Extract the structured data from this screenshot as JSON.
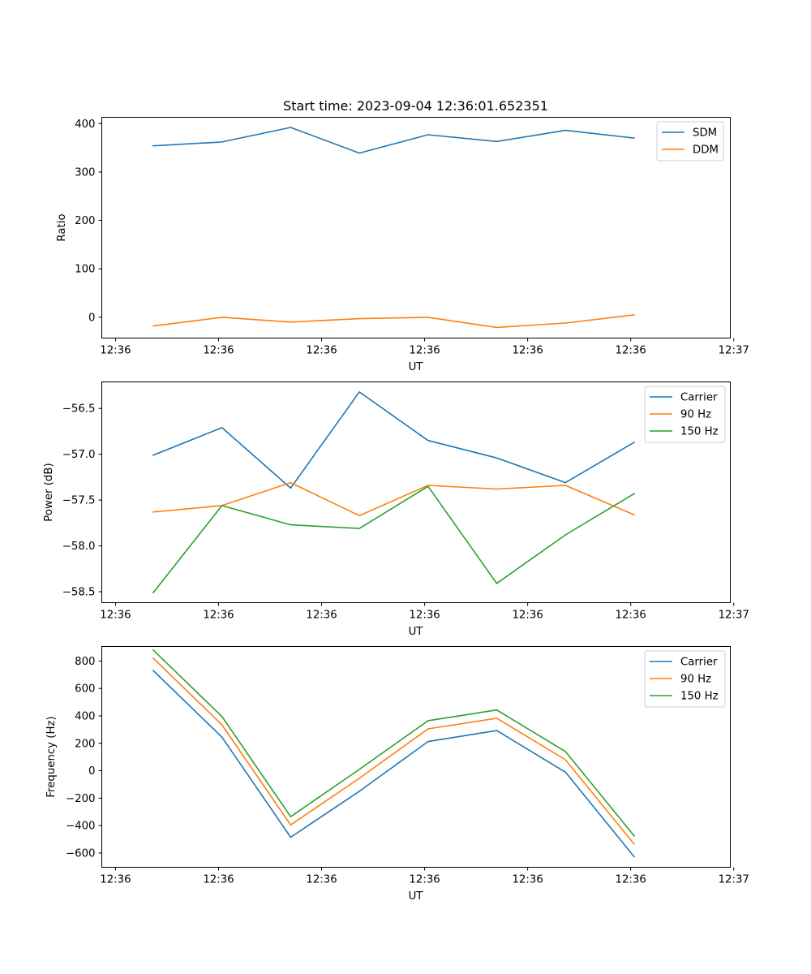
{
  "figure": {
    "title": "Start time: 2023-09-04 12:36:01.652351"
  },
  "colors": {
    "blue": "#1f77b4",
    "orange": "#ff7f0e",
    "green": "#2ca02c"
  },
  "chart_data": [
    {
      "type": "line",
      "title": "Start time: 2023-09-04 12:36:01.652351",
      "xlabel": "UT",
      "ylabel": "Ratio",
      "x": [
        1,
        2,
        3,
        4,
        5,
        6,
        7,
        8
      ],
      "xlim": [
        0.25,
        9.4
      ],
      "xticks": [
        0.45,
        1.95,
        3.45,
        4.95,
        6.45,
        7.95,
        9.45
      ],
      "xtick_labels": [
        "12:36",
        "12:36",
        "12:36",
        "12:36",
        "12:36",
        "12:36",
        "12:37"
      ],
      "ylim": [
        -43,
        413
      ],
      "yticks": [
        0,
        100,
        200,
        300,
        400
      ],
      "ytick_labels": [
        "0",
        "100",
        "200",
        "300",
        "400"
      ],
      "legend_position": "top-right",
      "series": [
        {
          "name": "SDM",
          "color": "#1f77b4",
          "values": [
            354,
            362,
            392,
            339,
            377,
            363,
            386,
            370
          ]
        },
        {
          "name": "DDM",
          "color": "#ff7f0e",
          "values": [
            -18,
            0,
            -10,
            -3,
            0,
            -21,
            -12,
            5
          ]
        }
      ]
    },
    {
      "type": "line",
      "title": "",
      "xlabel": "UT",
      "ylabel": "Power (dB)",
      "x": [
        1,
        2,
        3,
        4,
        5,
        6,
        7,
        8
      ],
      "xlim": [
        0.25,
        9.4
      ],
      "xticks": [
        0.45,
        1.95,
        3.45,
        4.95,
        6.45,
        7.95,
        9.45
      ],
      "xtick_labels": [
        "12:36",
        "12:36",
        "12:36",
        "12:36",
        "12:36",
        "12:36",
        "12:37"
      ],
      "ylim": [
        -58.62,
        -56.21
      ],
      "yticks": [
        -58.5,
        -58.0,
        -57.5,
        -57.0,
        -56.5
      ],
      "ytick_labels": [
        "−58.5",
        "−58.0",
        "−57.5",
        "−57.0",
        "−56.5"
      ],
      "legend_position": "top-right",
      "series": [
        {
          "name": "Carrier",
          "color": "#1f77b4",
          "values": [
            -57.01,
            -56.71,
            -57.37,
            -56.32,
            -56.85,
            -57.04,
            -57.31,
            -56.87
          ]
        },
        {
          "name": "90 Hz",
          "color": "#ff7f0e",
          "values": [
            -57.63,
            -57.56,
            -57.31,
            -57.67,
            -57.34,
            -57.38,
            -57.34,
            -57.66
          ]
        },
        {
          "name": "150 Hz",
          "color": "#2ca02c",
          "values": [
            -58.51,
            -57.56,
            -57.77,
            -57.81,
            -57.35,
            -58.41,
            -57.88,
            -57.43
          ]
        }
      ]
    },
    {
      "type": "line",
      "title": "",
      "xlabel": "UT",
      "ylabel": "Frequency (Hz)",
      "x": [
        1,
        2,
        3,
        4,
        5,
        6,
        7,
        8
      ],
      "xlim": [
        0.25,
        9.4
      ],
      "xticks": [
        0.45,
        1.95,
        3.45,
        4.95,
        6.45,
        7.95,
        9.45
      ],
      "xtick_labels": [
        "12:36",
        "12:36",
        "12:36",
        "12:36",
        "12:36",
        "12:36",
        "12:37"
      ],
      "ylim": [
        -704,
        906
      ],
      "yticks": [
        -600,
        -400,
        -200,
        0,
        200,
        400,
        600,
        800
      ],
      "ytick_labels": [
        "−600",
        "−400",
        "−200",
        "0",
        "200",
        "400",
        "600",
        "800"
      ],
      "legend_position": "top-right",
      "series": [
        {
          "name": "Carrier",
          "color": "#1f77b4",
          "values": [
            730,
            245,
            -485,
            -150,
            213,
            293,
            -10,
            -627
          ]
        },
        {
          "name": "90 Hz",
          "color": "#ff7f0e",
          "values": [
            820,
            335,
            -395,
            -55,
            305,
            383,
            80,
            -535
          ]
        },
        {
          "name": "150 Hz",
          "color": "#2ca02c",
          "values": [
            880,
            395,
            -335,
            10,
            365,
            443,
            140,
            -475
          ]
        }
      ]
    }
  ]
}
